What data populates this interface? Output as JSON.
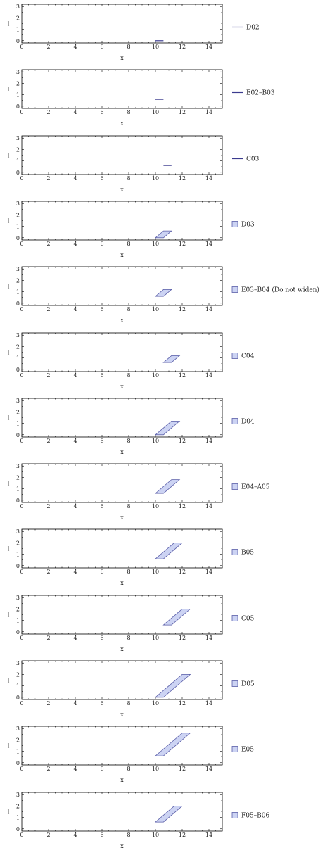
{
  "styles": {
    "line_color": "#3b3b8f",
    "fill_color": "#ccd3f3",
    "edge_color": "#5a5ea8",
    "axis_color": "#000000"
  },
  "chart_data": [
    {
      "type": "line",
      "xlabel": "x",
      "ylabel": "l",
      "xlim": [
        0,
        15
      ],
      "ylim": [
        -0.2,
        3.2
      ],
      "xticks": [
        "0",
        "2",
        "4",
        "6",
        "8",
        "10",
        "12",
        "14"
      ],
      "yticks": [
        "0",
        "1",
        "2",
        "3"
      ],
      "legend": {
        "label": "D02",
        "marker": "line"
      },
      "series": [
        {
          "name": "D02",
          "points": [
            [
              10.0,
              0.0
            ],
            [
              10.6,
              0.0
            ]
          ]
        }
      ]
    },
    {
      "type": "line",
      "xlabel": "x",
      "ylabel": "l",
      "xlim": [
        0,
        15
      ],
      "ylim": [
        -0.2,
        3.2
      ],
      "xticks": [
        "0",
        "2",
        "4",
        "6",
        "8",
        "10",
        "12",
        "14"
      ],
      "yticks": [
        "0",
        "1",
        "2",
        "3"
      ],
      "legend": {
        "label": "E02–B03",
        "marker": "line"
      },
      "series": [
        {
          "name": "E02–B03",
          "points": [
            [
              10.0,
              0.6
            ],
            [
              10.6,
              0.6
            ]
          ]
        }
      ]
    },
    {
      "type": "line",
      "xlabel": "x",
      "ylabel": "l",
      "xlim": [
        0,
        15
      ],
      "ylim": [
        -0.2,
        3.2
      ],
      "xticks": [
        "0",
        "2",
        "4",
        "6",
        "8",
        "10",
        "12",
        "14"
      ],
      "yticks": [
        "0",
        "1",
        "2",
        "3"
      ],
      "legend": {
        "label": "C03",
        "marker": "line"
      },
      "series": [
        {
          "name": "C03",
          "points": [
            [
              10.6,
              0.6
            ],
            [
              11.2,
              0.6
            ]
          ]
        }
      ]
    },
    {
      "type": "area",
      "xlabel": "x",
      "ylabel": "l",
      "xlim": [
        0,
        15
      ],
      "ylim": [
        -0.2,
        3.2
      ],
      "xticks": [
        "0",
        "2",
        "4",
        "6",
        "8",
        "10",
        "12",
        "14"
      ],
      "yticks": [
        "0",
        "1",
        "2",
        "3"
      ],
      "legend": {
        "label": "D03",
        "marker": "square"
      },
      "series": [
        {
          "name": "D03",
          "points": [
            [
              10.0,
              0.0
            ],
            [
              10.6,
              0.0
            ],
            [
              11.2,
              0.6
            ],
            [
              10.6,
              0.6
            ]
          ]
        }
      ]
    },
    {
      "type": "area",
      "xlabel": "x",
      "ylabel": "l",
      "xlim": [
        0,
        15
      ],
      "ylim": [
        -0.2,
        3.2
      ],
      "xticks": [
        "0",
        "2",
        "4",
        "6",
        "8",
        "10",
        "12",
        "14"
      ],
      "yticks": [
        "0",
        "1",
        "2",
        "3"
      ],
      "legend": {
        "label": "E03–B04 (Do not widen)",
        "marker": "square"
      },
      "series": [
        {
          "name": "E03–B04 (Do not widen)",
          "points": [
            [
              10.0,
              0.6
            ],
            [
              10.6,
              0.6
            ],
            [
              11.2,
              1.2
            ],
            [
              10.6,
              1.2
            ]
          ]
        }
      ]
    },
    {
      "type": "area",
      "xlabel": "x",
      "ylabel": "l",
      "xlim": [
        0,
        15
      ],
      "ylim": [
        -0.2,
        3.2
      ],
      "xticks": [
        "0",
        "2",
        "4",
        "6",
        "8",
        "10",
        "12",
        "14"
      ],
      "yticks": [
        "0",
        "1",
        "2",
        "3"
      ],
      "legend": {
        "label": "C04",
        "marker": "square"
      },
      "series": [
        {
          "name": "C04",
          "points": [
            [
              10.6,
              0.6
            ],
            [
              11.2,
              0.6
            ],
            [
              11.8,
              1.2
            ],
            [
              11.2,
              1.2
            ]
          ]
        }
      ]
    },
    {
      "type": "area",
      "xlabel": "x",
      "ylabel": "l",
      "xlim": [
        0,
        15
      ],
      "ylim": [
        -0.2,
        3.2
      ],
      "xticks": [
        "0",
        "2",
        "4",
        "6",
        "8",
        "10",
        "12",
        "14"
      ],
      "yticks": [
        "0",
        "1",
        "2",
        "3"
      ],
      "legend": {
        "label": "D04",
        "marker": "square"
      },
      "series": [
        {
          "name": "D04",
          "points": [
            [
              10.0,
              0.0
            ],
            [
              10.6,
              0.0
            ],
            [
              11.8,
              1.2
            ],
            [
              11.2,
              1.2
            ]
          ]
        }
      ]
    },
    {
      "type": "area",
      "xlabel": "x",
      "ylabel": "l",
      "xlim": [
        0,
        15
      ],
      "ylim": [
        -0.2,
        3.2
      ],
      "xticks": [
        "0",
        "2",
        "4",
        "6",
        "8",
        "10",
        "12",
        "14"
      ],
      "yticks": [
        "0",
        "1",
        "2",
        "3"
      ],
      "legend": {
        "label": "E04–A05",
        "marker": "square"
      },
      "series": [
        {
          "name": "E04–A05",
          "points": [
            [
              10.0,
              0.6
            ],
            [
              10.6,
              0.6
            ],
            [
              11.8,
              1.8
            ],
            [
              11.2,
              1.8
            ]
          ]
        }
      ]
    },
    {
      "type": "area",
      "xlabel": "x",
      "ylabel": "l",
      "xlim": [
        0,
        15
      ],
      "ylim": [
        -0.2,
        3.2
      ],
      "xticks": [
        "0",
        "2",
        "4",
        "6",
        "8",
        "10",
        "12",
        "14"
      ],
      "yticks": [
        "0",
        "1",
        "2",
        "3"
      ],
      "legend": {
        "label": "B05",
        "marker": "square"
      },
      "series": [
        {
          "name": "B05",
          "points": [
            [
              10.0,
              0.6
            ],
            [
              10.6,
              0.6
            ],
            [
              12.0,
              2.0
            ],
            [
              11.4,
              2.0
            ]
          ]
        }
      ]
    },
    {
      "type": "area",
      "xlabel": "x",
      "ylabel": "l",
      "xlim": [
        0,
        15
      ],
      "ylim": [
        -0.2,
        3.2
      ],
      "xticks": [
        "0",
        "2",
        "4",
        "6",
        "8",
        "10",
        "12",
        "14"
      ],
      "yticks": [
        "0",
        "1",
        "2",
        "3"
      ],
      "legend": {
        "label": "C05",
        "marker": "square"
      },
      "series": [
        {
          "name": "C05",
          "points": [
            [
              10.6,
              0.6
            ],
            [
              11.2,
              0.6
            ],
            [
              12.6,
              2.0
            ],
            [
              12.0,
              2.0
            ]
          ]
        }
      ]
    },
    {
      "type": "area",
      "xlabel": "x",
      "ylabel": "l",
      "xlim": [
        0,
        15
      ],
      "ylim": [
        -0.2,
        3.2
      ],
      "xticks": [
        "0",
        "2",
        "4",
        "6",
        "8",
        "10",
        "12",
        "14"
      ],
      "yticks": [
        "0",
        "1",
        "2",
        "3"
      ],
      "legend": {
        "label": "D05",
        "marker": "square"
      },
      "series": [
        {
          "name": "D05",
          "points": [
            [
              10.0,
              0.0
            ],
            [
              10.6,
              0.0
            ],
            [
              12.6,
              2.0
            ],
            [
              12.0,
              2.0
            ]
          ]
        }
      ]
    },
    {
      "type": "area",
      "xlabel": "x",
      "ylabel": "l",
      "xlim": [
        0,
        15
      ],
      "ylim": [
        -0.2,
        3.2
      ],
      "xticks": [
        "0",
        "2",
        "4",
        "6",
        "8",
        "10",
        "12",
        "14"
      ],
      "yticks": [
        "0",
        "1",
        "2",
        "3"
      ],
      "legend": {
        "label": "E05",
        "marker": "square"
      },
      "series": [
        {
          "name": "E05",
          "points": [
            [
              10.0,
              0.6
            ],
            [
              10.6,
              0.6
            ],
            [
              12.6,
              2.6
            ],
            [
              12.0,
              2.6
            ]
          ]
        }
      ]
    },
    {
      "type": "area",
      "xlabel": "x",
      "ylabel": "l",
      "xlim": [
        0,
        15
      ],
      "ylim": [
        -0.2,
        3.2
      ],
      "xticks": [
        "0",
        "2",
        "4",
        "6",
        "8",
        "10",
        "12",
        "14"
      ],
      "yticks": [
        "0",
        "1",
        "2",
        "3"
      ],
      "legend": {
        "label": "F05–B06",
        "marker": "square"
      },
      "series": [
        {
          "name": "F05–B06",
          "points": [
            [
              10.0,
              0.6
            ],
            [
              10.6,
              0.6
            ],
            [
              12.0,
              2.0
            ],
            [
              11.4,
              2.0
            ]
          ]
        }
      ]
    }
  ]
}
